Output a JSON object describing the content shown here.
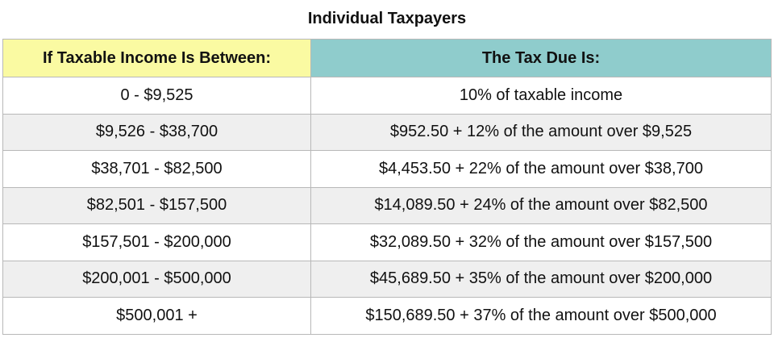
{
  "title": "Individual Taxpayers",
  "table": {
    "header": [
      "If Taxable Income Is Between:",
      "The Tax Due Is:"
    ],
    "rows": [
      [
        "0 - $9,525",
        "10% of taxable income"
      ],
      [
        "$9,526 - $38,700",
        "$952.50 + 12% of the amount over $9,525"
      ],
      [
        "$38,701 - $82,500",
        "$4,453.50 + 22% of the amount over $38,700"
      ],
      [
        "$82,501 - $157,500",
        "$14,089.50 + 24% of the amount over $82,500"
      ],
      [
        "$157,501 - $200,000",
        "$32,089.50 + 32% of the amount over $157,500"
      ],
      [
        "$200,001 - $500,000",
        "$45,689.50 + 35% of the amount over $200,000"
      ],
      [
        "$500,001 +",
        "$150,689.50 + 37% of the amount over $500,000"
      ]
    ]
  }
}
